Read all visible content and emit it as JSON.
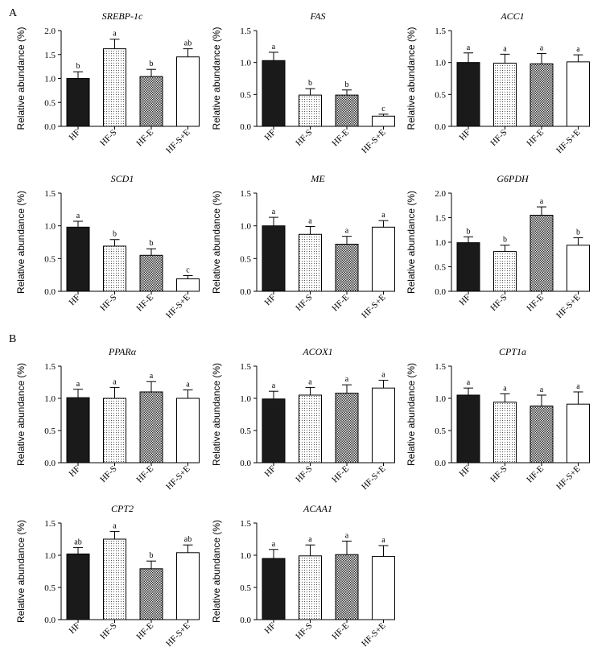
{
  "panel_labels": [
    "A",
    "B"
  ],
  "bar_colors": {
    "HF": "#1a1a1a",
    "HF-S": "dots",
    "HF-E": "checker",
    "HF-S+E": "#ffffff"
  },
  "chart_data": [
    {
      "type": "bar",
      "title": "SREBP-1c",
      "ylabel": "Relative abundance (%)",
      "categories": [
        "HF",
        "HF-S",
        "HF-E",
        "HF-S+E"
      ],
      "values": [
        1.0,
        1.62,
        1.04,
        1.45
      ],
      "errors": [
        0.14,
        0.2,
        0.15,
        0.17
      ],
      "letters": [
        "b",
        "a",
        "b",
        "ab"
      ],
      "ylim": [
        0,
        2.0
      ],
      "yticks": [
        "0.0",
        "0.5",
        "1.0",
        "1.5",
        "2.0"
      ]
    },
    {
      "type": "bar",
      "title": "FAS",
      "ylabel": "Relative abundance (%)",
      "categories": [
        "HF",
        "HF-S",
        "HF-E",
        "HF-S+E"
      ],
      "values": [
        1.03,
        0.49,
        0.49,
        0.16
      ],
      "errors": [
        0.13,
        0.1,
        0.08,
        0.03
      ],
      "letters": [
        "a",
        "b",
        "b",
        "c"
      ],
      "ylim": [
        0,
        1.5
      ],
      "yticks": [
        "0.0",
        "0.5",
        "1.0",
        "1.5"
      ]
    },
    {
      "type": "bar",
      "title": "ACC1",
      "ylabel": "Relative abundance (%)",
      "categories": [
        "HF",
        "HF-S",
        "HF-E",
        "HF-S+E"
      ],
      "values": [
        1.0,
        0.99,
        0.98,
        1.01
      ],
      "errors": [
        0.15,
        0.14,
        0.16,
        0.11
      ],
      "letters": [
        "a",
        "a",
        "a",
        "a"
      ],
      "ylim": [
        0,
        1.5
      ],
      "yticks": [
        "0.0",
        "0.5",
        "1.0",
        "1.5"
      ]
    },
    {
      "type": "bar",
      "title": "SCD1",
      "ylabel": "Relative abundance (%)",
      "categories": [
        "HF",
        "HF-S",
        "HF-E",
        "HF-S+E"
      ],
      "values": [
        0.98,
        0.69,
        0.55,
        0.19
      ],
      "errors": [
        0.09,
        0.1,
        0.1,
        0.05
      ],
      "letters": [
        "a",
        "b",
        "b",
        "c"
      ],
      "ylim": [
        0,
        1.5
      ],
      "yticks": [
        "0.0",
        "0.5",
        "1.0",
        "1.5"
      ]
    },
    {
      "type": "bar",
      "title": "ME",
      "ylabel": "Relative abundance (%)",
      "categories": [
        "HF",
        "HF-S",
        "HF-E",
        "HF-S+E"
      ],
      "values": [
        1.0,
        0.87,
        0.72,
        0.98
      ],
      "errors": [
        0.13,
        0.12,
        0.12,
        0.1
      ],
      "letters": [
        "a",
        "a",
        "a",
        "a"
      ],
      "ylim": [
        0,
        1.5
      ],
      "yticks": [
        "0.0",
        "0.5",
        "1.0",
        "1.5"
      ]
    },
    {
      "type": "bar",
      "title": "G6PDH",
      "ylabel": "Relative abundance (%)",
      "categories": [
        "HF",
        "HF-S",
        "HF-E",
        "HF-S+E"
      ],
      "values": [
        0.99,
        0.81,
        1.55,
        0.94
      ],
      "errors": [
        0.12,
        0.13,
        0.17,
        0.15
      ],
      "letters": [
        "b",
        "b",
        "a",
        "b"
      ],
      "ylim": [
        0,
        2.0
      ],
      "yticks": [
        "0.0",
        "0.5",
        "1.0",
        "1.5",
        "2.0"
      ]
    },
    {
      "type": "bar",
      "title": "PPARα",
      "ylabel": "Relative abundance (%)",
      "categories": [
        "HF",
        "HF-S",
        "HF-E",
        "HF-S+E"
      ],
      "values": [
        1.01,
        1.0,
        1.1,
        1.0
      ],
      "errors": [
        0.13,
        0.17,
        0.16,
        0.13
      ],
      "letters": [
        "a",
        "a",
        "a",
        "a"
      ],
      "ylim": [
        0,
        1.5
      ],
      "yticks": [
        "0.0",
        "0.5",
        "1.0",
        "1.5"
      ]
    },
    {
      "type": "bar",
      "title": "ACOX1",
      "ylabel": "Relative abundance (%)",
      "categories": [
        "HF",
        "HF-S",
        "HF-E",
        "HF-S+E"
      ],
      "values": [
        0.99,
        1.05,
        1.08,
        1.16
      ],
      "errors": [
        0.12,
        0.12,
        0.13,
        0.12
      ],
      "letters": [
        "a",
        "a",
        "a",
        "a"
      ],
      "ylim": [
        0,
        1.5
      ],
      "yticks": [
        "0.0",
        "0.5",
        "1.0",
        "1.5"
      ]
    },
    {
      "type": "bar",
      "title": "CPT1a",
      "ylabel": "Relative abundance (%)",
      "categories": [
        "HF",
        "HF-S",
        "HF-E",
        "HF-S+E"
      ],
      "values": [
        1.05,
        0.94,
        0.88,
        0.91
      ],
      "errors": [
        0.11,
        0.13,
        0.17,
        0.19
      ],
      "letters": [
        "a",
        "a",
        "a",
        "a"
      ],
      "ylim": [
        0,
        1.5
      ],
      "yticks": [
        "0.0",
        "0.5",
        "1.0",
        "1.5"
      ]
    },
    {
      "type": "bar",
      "title": "CPT2",
      "ylabel": "Relative abundance (%)",
      "categories": [
        "HF",
        "HF-S",
        "HF-E",
        "HF-S+E"
      ],
      "values": [
        1.02,
        1.25,
        0.79,
        1.04
      ],
      "errors": [
        0.1,
        0.12,
        0.12,
        0.12
      ],
      "letters": [
        "ab",
        "a",
        "b",
        "ab"
      ],
      "ylim": [
        0,
        1.5
      ],
      "yticks": [
        "0.0",
        "0.5",
        "1.0",
        "1.5"
      ]
    },
    {
      "type": "bar",
      "title": "ACAA1",
      "ylabel": "Relative abundance (%)",
      "categories": [
        "HF",
        "HF-S",
        "HF-E",
        "HF-S+E"
      ],
      "values": [
        0.95,
        0.99,
        1.01,
        0.98
      ],
      "errors": [
        0.14,
        0.17,
        0.21,
        0.17
      ],
      "letters": [
        "a",
        "a",
        "a",
        "a"
      ],
      "ylim": [
        0,
        1.5
      ],
      "yticks": [
        "0.0",
        "0.5",
        "1.0",
        "1.5"
      ]
    }
  ]
}
